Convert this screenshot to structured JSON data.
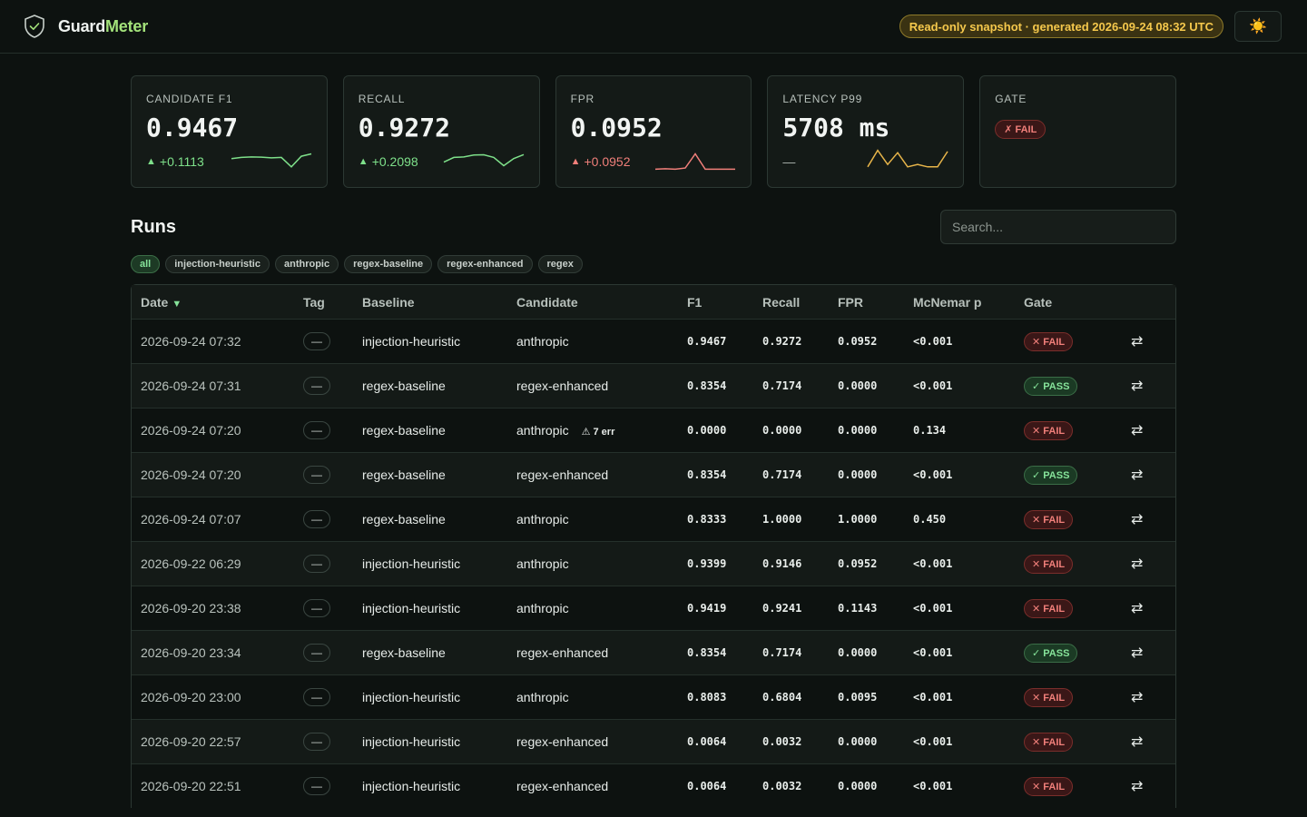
{
  "header": {
    "brand_part1": "Guard",
    "brand_part2": "Meter",
    "snapshot": "Read-only snapshot · generated 2026-09-24 08:32 UTC",
    "theme_icon": "☀️"
  },
  "cards": [
    {
      "label": "CANDIDATE F1",
      "value": "0.9467",
      "delta": "+0.1113",
      "delta_arrow": "▲",
      "trend": "positive",
      "spark_color": "#7ee08a",
      "spark": [
        0.55,
        0.6,
        0.62,
        0.61,
        0.58,
        0.6,
        0.2,
        0.65,
        0.75
      ]
    },
    {
      "label": "RECALL",
      "value": "0.9272",
      "delta": "+0.2098",
      "delta_arrow": "▲",
      "trend": "positive",
      "spark_color": "#7ee08a",
      "spark": [
        0.4,
        0.6,
        0.62,
        0.7,
        0.71,
        0.6,
        0.25,
        0.55,
        0.72
      ]
    },
    {
      "label": "FPR",
      "value": "0.0952",
      "delta": "+0.0952",
      "delta_arrow": "▲",
      "trend": "negative",
      "spark_color": "#f07f7a",
      "spark": [
        0.1,
        0.12,
        0.1,
        0.15,
        0.75,
        0.1,
        0.1,
        0.1,
        0.1
      ]
    },
    {
      "label": "LATENCY P99",
      "value": "5708 ms",
      "delta": "—",
      "delta_arrow": "",
      "trend": "none",
      "spark_color": "#e8b54a",
      "spark": [
        0.2,
        0.9,
        0.3,
        0.8,
        0.2,
        0.3,
        0.2,
        0.2,
        0.85
      ]
    }
  ],
  "gate_card": {
    "label": "GATE",
    "badge": "✗ FAIL"
  },
  "runs": {
    "title": "Runs",
    "search_placeholder": "Search...",
    "chips": [
      "all",
      "injection-heuristic",
      "anthropic",
      "regex-baseline",
      "regex-enhanced",
      "regex"
    ],
    "columns": [
      "Date",
      "Tag",
      "Baseline",
      "Candidate",
      "F1",
      "Recall",
      "FPR",
      "McNemar p",
      "Gate",
      ""
    ],
    "sort_arrow": "▼",
    "rows": [
      {
        "date": "2026-09-24 07:32",
        "tag": "—",
        "baseline": "injection-heuristic",
        "candidate": "anthropic",
        "err": "",
        "f1": "0.9467",
        "recall": "0.9272",
        "fpr": "0.0952",
        "p": "<0.001",
        "gate": "✕ FAIL",
        "gate_status": "fail"
      },
      {
        "date": "2026-09-24 07:31",
        "tag": "—",
        "baseline": "regex-baseline",
        "candidate": "regex-enhanced",
        "err": "",
        "f1": "0.8354",
        "recall": "0.7174",
        "fpr": "0.0000",
        "p": "<0.001",
        "gate": "✓ PASS",
        "gate_status": "pass"
      },
      {
        "date": "2026-09-24 07:20",
        "tag": "—",
        "baseline": "regex-baseline",
        "candidate": "anthropic",
        "err": "⚠ 7 err",
        "f1": "0.0000",
        "recall": "0.0000",
        "fpr": "0.0000",
        "p": "0.134",
        "gate": "✕ FAIL",
        "gate_status": "fail"
      },
      {
        "date": "2026-09-24 07:20",
        "tag": "—",
        "baseline": "regex-baseline",
        "candidate": "regex-enhanced",
        "err": "",
        "f1": "0.8354",
        "recall": "0.7174",
        "fpr": "0.0000",
        "p": "<0.001",
        "gate": "✓ PASS",
        "gate_status": "pass"
      },
      {
        "date": "2026-09-24 07:07",
        "tag": "—",
        "baseline": "regex-baseline",
        "candidate": "anthropic",
        "err": "",
        "f1": "0.8333",
        "recall": "1.0000",
        "fpr": "1.0000",
        "p": "0.450",
        "gate": "✕ FAIL",
        "gate_status": "fail"
      },
      {
        "date": "2026-09-22 06:29",
        "tag": "—",
        "baseline": "injection-heuristic",
        "candidate": "anthropic",
        "err": "",
        "f1": "0.9399",
        "recall": "0.9146",
        "fpr": "0.0952",
        "p": "<0.001",
        "gate": "✕ FAIL",
        "gate_status": "fail"
      },
      {
        "date": "2026-09-20 23:38",
        "tag": "—",
        "baseline": "injection-heuristic",
        "candidate": "anthropic",
        "err": "",
        "f1": "0.9419",
        "recall": "0.9241",
        "fpr": "0.1143",
        "p": "<0.001",
        "gate": "✕ FAIL",
        "gate_status": "fail"
      },
      {
        "date": "2026-09-20 23:34",
        "tag": "—",
        "baseline": "regex-baseline",
        "candidate": "regex-enhanced",
        "err": "",
        "f1": "0.8354",
        "recall": "0.7174",
        "fpr": "0.0000",
        "p": "<0.001",
        "gate": "✓ PASS",
        "gate_status": "pass"
      },
      {
        "date": "2026-09-20 23:00",
        "tag": "—",
        "baseline": "injection-heuristic",
        "candidate": "anthropic",
        "err": "",
        "f1": "0.8083",
        "recall": "0.6804",
        "fpr": "0.0095",
        "p": "<0.001",
        "gate": "✕ FAIL",
        "gate_status": "fail"
      },
      {
        "date": "2026-09-20 22:57",
        "tag": "—",
        "baseline": "injection-heuristic",
        "candidate": "regex-enhanced",
        "err": "",
        "f1": "0.0064",
        "recall": "0.0032",
        "fpr": "0.0000",
        "p": "<0.001",
        "gate": "✕ FAIL",
        "gate_status": "fail"
      },
      {
        "date": "2026-09-20 22:51",
        "tag": "—",
        "baseline": "injection-heuristic",
        "candidate": "regex-enhanced",
        "err": "",
        "f1": "0.0064",
        "recall": "0.0032",
        "fpr": "0.0000",
        "p": "<0.001",
        "gate": "✕ FAIL",
        "gate_status": "fail"
      }
    ],
    "compare_icon": "⇄"
  }
}
